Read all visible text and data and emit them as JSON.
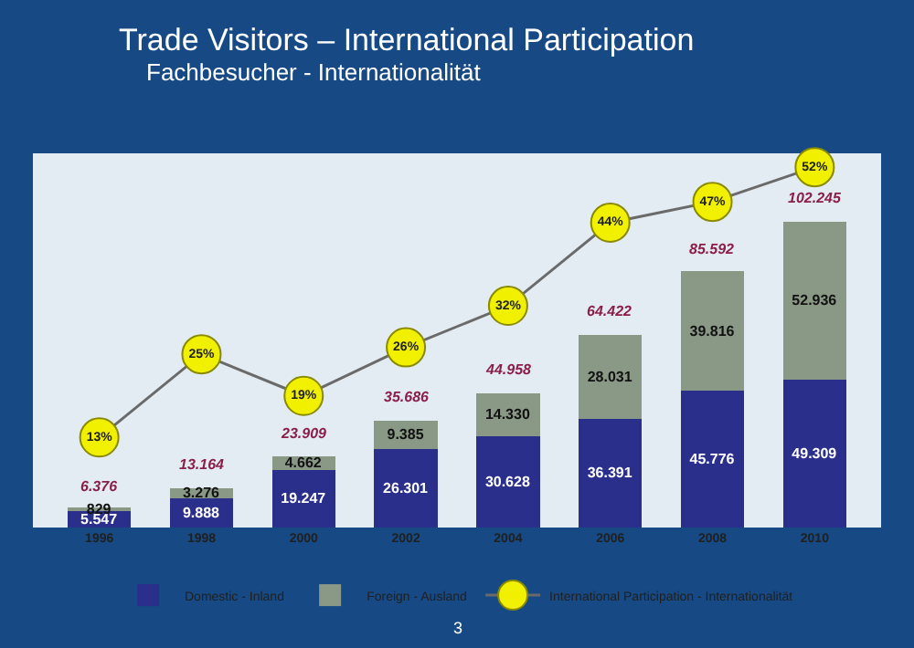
{
  "chart_data": {
    "type": "bar",
    "title": "Trade Visitors – International Participation",
    "subtitle": "Fachbesucher - Internationalität",
    "categories": [
      "1996",
      "1998",
      "2000",
      "2002",
      "2004",
      "2006",
      "2008",
      "2010"
    ],
    "stacked": true,
    "ylim": [
      0,
      125000
    ],
    "tick_labels": "x",
    "y2lim": [
      0,
      54
    ],
    "legend": "bottom",
    "marker": "circle",
    "series": [
      {
        "name": "Domestic - Inland",
        "color": "#2b2f8c",
        "values": [
          5547,
          9888,
          19247,
          26301,
          30628,
          36391,
          45776,
          49309
        ],
        "value_labels": [
          "5.547",
          "9.888",
          "19.247",
          "26.301",
          "30.628",
          "36.391",
          "45.776",
          "49.309"
        ]
      },
      {
        "name": "Foreign - Ausland",
        "color": "#8a9886",
        "values": [
          829,
          3276,
          4662,
          9385,
          14330,
          28031,
          39816,
          52936
        ],
        "value_labels": [
          "829",
          "3.276",
          "4.662",
          "9.385",
          "14.330",
          "28.031",
          "39.816",
          "52.936"
        ]
      },
      {
        "name": "International Participation - Internationalität",
        "type": "line",
        "axis": "y2",
        "color": "#f0f000",
        "values": [
          13,
          25,
          19,
          26,
          32,
          44,
          47,
          52
        ],
        "value_labels": [
          "13%",
          "25%",
          "19%",
          "26%",
          "32%",
          "44%",
          "47%",
          "52%"
        ]
      }
    ],
    "totals": [
      "6.376",
      "13.164",
      "23.909",
      "35.686",
      "44.958",
      "64.422",
      "85.592",
      "102.245"
    ],
    "annotations": [
      "3"
    ]
  }
}
